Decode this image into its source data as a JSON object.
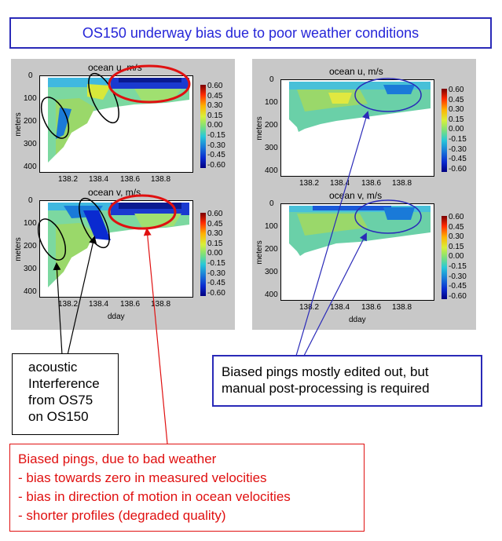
{
  "title": "OS150 underway bias due to poor weather conditions",
  "colors": {
    "title_blue": "#2626d8",
    "red": "#e01010",
    "blue_box": "#2a2ab8"
  },
  "left_panel": {
    "u": {
      "title": "ocean u, m/s"
    },
    "v": {
      "title": "ocean v, m/s"
    },
    "ylabel": "meters",
    "xlabel": "dday",
    "yticks": [
      "0",
      "100",
      "200",
      "300",
      "400"
    ],
    "xticks": [
      "138.2",
      "138.4",
      "138.6",
      "138.8"
    ],
    "cbar_ticks": [
      "0.60",
      "0.45",
      "0.30",
      "0.15",
      "0.00",
      "-0.15",
      "-0.30",
      "-0.45",
      "-0.60"
    ]
  },
  "right_panel": {
    "u": {
      "title": "ocean u, m/s"
    },
    "v": {
      "title": "ocean v, m/s"
    },
    "ylabel": "meters",
    "xlabel": "dday",
    "yticks": [
      "0",
      "100",
      "200",
      "300",
      "400"
    ],
    "xticks": [
      "138.2",
      "138.4",
      "138.6",
      "138.8"
    ],
    "cbar_ticks": [
      "0.60",
      "0.45",
      "0.30",
      "0.15",
      "0.00",
      "-0.15",
      "-0.30",
      "-0.45",
      "-0.60"
    ]
  },
  "annotations": {
    "acoustic": [
      "acoustic",
      "Interference",
      "from OS75",
      "on OS150"
    ],
    "biased_edited": [
      "Biased pings mostly edited out, but",
      "manual post-processing is required"
    ],
    "bad_weather": [
      "Biased pings, due to bad weather",
      "- bias towards zero in measured velocities",
      "- bias in direction of motion in ocean velocities",
      "- shorter profiles (degraded quality)"
    ]
  }
}
